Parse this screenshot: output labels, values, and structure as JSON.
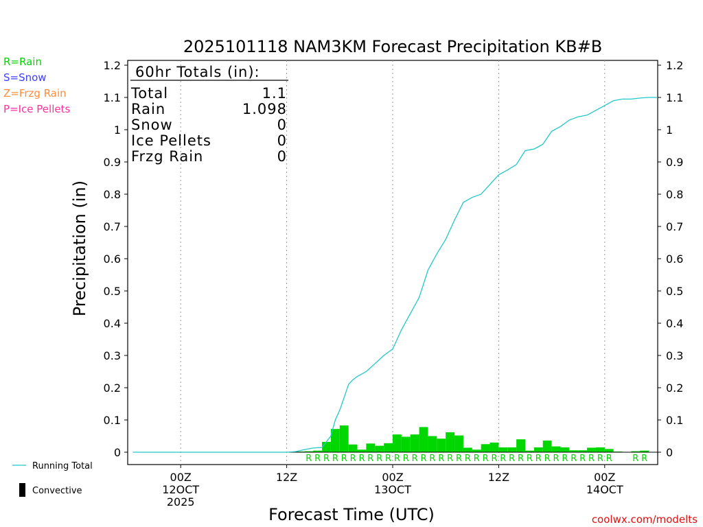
{
  "chart_data": {
    "type": "bar",
    "title": "2025101118 NAM3KM Forecast Precipitation KB#B",
    "ylabel": "Precipitation (in)",
    "xlabel": "Forecast Time (UTC)",
    "ylim": [
      0,
      1.2
    ],
    "xlim_hours": [
      0,
      60
    ],
    "y_ticks": [
      "0",
      "0.1",
      "0.2",
      "0.3",
      "0.4",
      "0.5",
      "0.6",
      "0.7",
      "0.8",
      "0.9",
      "1",
      "1.1",
      "1.2"
    ],
    "y_tick_values": [
      0,
      0.1,
      0.2,
      0.3,
      0.4,
      0.5,
      0.6,
      0.7,
      0.8,
      0.9,
      1.0,
      1.1,
      1.2
    ],
    "x_ticks": [
      {
        "hour": 6,
        "label": "00Z",
        "sub1": "12OCT",
        "sub2": "2025"
      },
      {
        "hour": 18,
        "label": "12Z",
        "sub1": "",
        "sub2": ""
      },
      {
        "hour": 30,
        "label": "00Z",
        "sub1": "13OCT",
        "sub2": ""
      },
      {
        "hour": 42,
        "label": "12Z",
        "sub1": "",
        "sub2": ""
      },
      {
        "hour": 54,
        "label": "00Z",
        "sub1": "14OCT",
        "sub2": ""
      }
    ],
    "hourly_start_hour": 19,
    "hourly_values": [
      0.002,
      0.003,
      0.005,
      0.032,
      0.072,
      0.083,
      0.024,
      0.008,
      0.027,
      0.02,
      0.028,
      0.055,
      0.048,
      0.055,
      0.078,
      0.05,
      0.042,
      0.062,
      0.052,
      0.014,
      0.008,
      0.025,
      0.03,
      0.015,
      0.015,
      0.04,
      0.005,
      0.015,
      0.036,
      0.018,
      0.015,
      0.006,
      0.006,
      0.014,
      0.015,
      0.01,
      0.002,
      0.0,
      0.003,
      0.005
    ],
    "hourly_types": [
      "",
      "R",
      "R",
      "R",
      "R",
      "R",
      "R",
      "R",
      "R",
      "R",
      "R",
      "R",
      "R",
      "R",
      "R",
      "R",
      "R",
      "R",
      "R",
      "R",
      "R",
      "R",
      "R",
      "R",
      "R",
      "R",
      "R",
      "R",
      "R",
      "R",
      "R",
      "R",
      "R",
      "R",
      "R",
      "R",
      "",
      "",
      "R",
      "R"
    ],
    "running_total_hours": [
      0,
      18,
      19,
      20,
      21,
      22,
      23,
      23.5,
      24,
      25,
      25.5,
      26,
      27,
      28,
      29,
      30,
      31,
      32,
      33,
      34,
      35,
      36,
      37,
      38,
      39,
      40,
      41,
      42,
      43,
      44,
      45,
      46,
      47,
      48,
      49,
      50,
      51,
      52,
      53,
      54,
      55,
      56,
      57,
      58,
      59,
      60
    ],
    "running_total": [
      0,
      0,
      0.002,
      0.008,
      0.013,
      0.015,
      0.05,
      0.1,
      0.13,
      0.21,
      0.225,
      0.235,
      0.25,
      0.275,
      0.3,
      0.32,
      0.38,
      0.43,
      0.48,
      0.565,
      0.615,
      0.66,
      0.72,
      0.775,
      0.79,
      0.8,
      0.83,
      0.86,
      0.875,
      0.892,
      0.935,
      0.94,
      0.955,
      0.995,
      1.01,
      1.03,
      1.04,
      1.045,
      1.06,
      1.075,
      1.09,
      1.095,
      1.095,
      1.098,
      1.1,
      1.1
    ],
    "totals_box": {
      "header": "60hr Totals (in):",
      "rows": [
        {
          "label": "Total",
          "value": "1.1"
        },
        {
          "label": "Rain",
          "value": "1.098"
        },
        {
          "label": "Snow",
          "value": "0"
        },
        {
          "label": "Ice Pellets",
          "value": "0"
        },
        {
          "label": "Frzg Rain",
          "value": "0"
        }
      ]
    }
  },
  "legend": {
    "rain": "R=Rain",
    "snow": "S=Snow",
    "frzg": "Z=Frzg Rain",
    "ice": "P=Ice Pellets",
    "running_total": "Running Total",
    "convective": "Convective"
  },
  "colors": {
    "rain": "#00d700",
    "snow": "#3d3dff",
    "frzg": "#ff8c3c",
    "ice": "#ff2ea0",
    "running_total": "#20c8c8",
    "watermark": "#e01010"
  },
  "watermark": "coolwx.com/modelts"
}
